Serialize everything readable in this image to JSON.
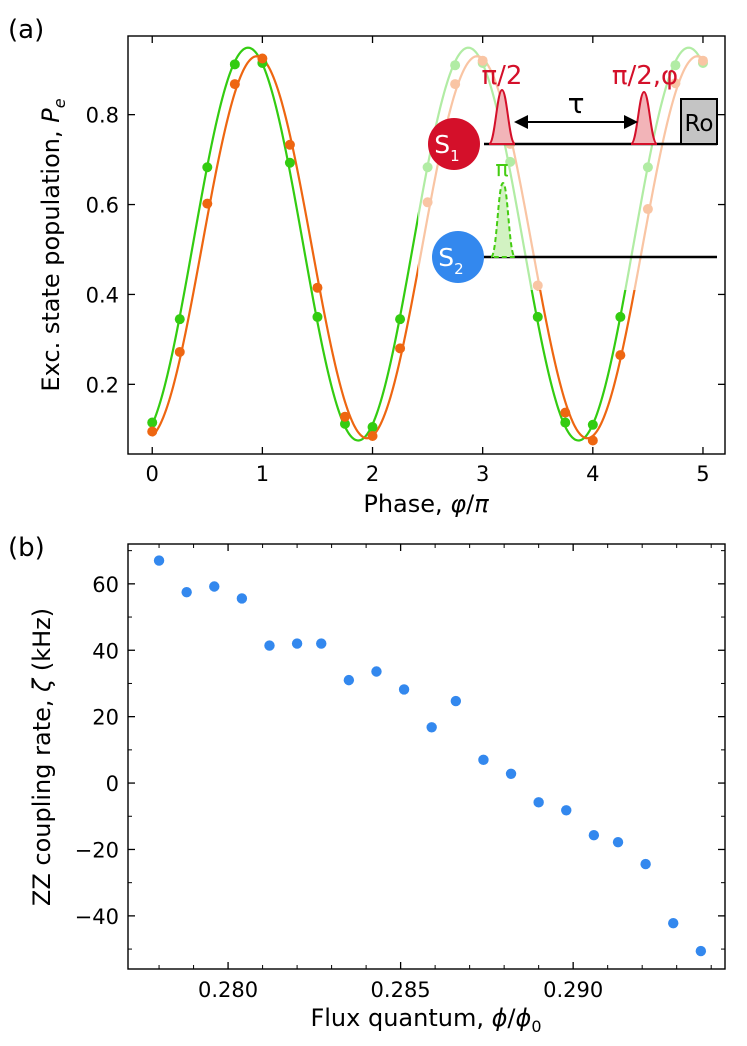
{
  "chart_data": [
    {
      "panel_label": "(a)",
      "type": "scatter",
      "xlabel": "Phase, φ/π",
      "ylabel": "Exc. state population, Pe",
      "ylabel_main": "Exc. state population, ",
      "ylabel_symbol": "P",
      "ylabel_subscript": "e",
      "xlim": [
        -0.22,
        5.2
      ],
      "ylim": [
        0.045,
        0.975
      ],
      "xticks": [
        0,
        1,
        2,
        3,
        4,
        5
      ],
      "xtick_labels": [
        "0",
        "1",
        "2",
        "3",
        "4",
        "5"
      ],
      "yticks": [
        0.2,
        0.4,
        0.6,
        0.8
      ],
      "ytick_labels": [
        "0.2",
        "0.4",
        "0.6",
        "0.8"
      ],
      "series": [
        {
          "name": "green data",
          "color": "#33cc11",
          "x": [
            0,
            0.25,
            0.5,
            0.75,
            1,
            1.25,
            1.5,
            1.75,
            2,
            2.25,
            2.5,
            2.75,
            3,
            3.25,
            3.5,
            3.75,
            4,
            4.25,
            4.5,
            4.75,
            5
          ],
          "y": [
            0.115,
            0.345,
            0.683,
            0.912,
            0.915,
            0.693,
            0.35,
            0.112,
            0.105,
            0.345,
            0.683,
            0.91,
            0.915,
            0.695,
            0.35,
            0.115,
            0.11,
            0.35,
            0.683,
            0.91,
            0.915
          ],
          "fit": {
            "amplitude": 0.437,
            "offset": 0.512,
            "phase_shift": 0.87
          }
        },
        {
          "name": "orange data",
          "color": "#ee6611",
          "x": [
            0,
            0.25,
            0.5,
            0.75,
            1,
            1.25,
            1.5,
            1.75,
            2,
            2.25,
            2.5,
            2.75,
            3,
            3.25,
            3.5,
            3.75,
            4,
            4.25,
            4.5,
            4.75,
            5
          ],
          "y": [
            0.095,
            0.272,
            0.602,
            0.868,
            0.925,
            0.733,
            0.415,
            0.128,
            0.085,
            0.28,
            0.605,
            0.868,
            0.92,
            0.735,
            0.42,
            0.137,
            0.075,
            0.265,
            0.59,
            0.87,
            0.92
          ],
          "fit": {
            "amplitude": 0.425,
            "offset": 0.505,
            "phase_shift": 0.95
          }
        }
      ],
      "inset": {
        "qubit1_letter": "S",
        "qubit1_sub": "1",
        "qubit2_letter": "S",
        "qubit2_sub": "2",
        "qubit1_color": "#d4102a",
        "qubit2_color": "#3388ee",
        "pulse1_label": "π/2",
        "pulse2_label": "π/2,φ",
        "pi_label": "π",
        "tau_label": "τ",
        "readout_label": "Ro",
        "pulse_color": "#d4102a",
        "pi_color": "#44cc11"
      }
    },
    {
      "panel_label": "(b)",
      "type": "scatter",
      "xlabel": "Flux quantum, ϕ/ϕ0",
      "xlabel_main": "Flux quantum, ",
      "xlabel_sym1": "ϕ",
      "xlabel_sym2": "ϕ",
      "xlabel_sub": "0",
      "ylabel": "ZZ coupling rate, ζ (kHz)",
      "ylabel_main": "ZZ coupling rate, ",
      "ylabel_symbol": "ζ",
      "ylabel_unit": " (kHz)",
      "xlim": [
        0.2771,
        0.2944
      ],
      "ylim": [
        -56,
        72
      ],
      "xticks": [
        0.28,
        0.285,
        0.29
      ],
      "xtick_labels": [
        "0.280",
        "0.285",
        "0.290"
      ],
      "yticks": [
        -40,
        -20,
        0,
        20,
        40,
        60
      ],
      "ytick_labels": [
        "−40",
        "−20",
        "0",
        "20",
        "40",
        "60"
      ],
      "series": [
        {
          "name": "zeta",
          "color": "#3388ee",
          "x": [
            0.278,
            0.2788,
            0.2796,
            0.2804,
            0.2812,
            0.282,
            0.2827,
            0.2835,
            0.2843,
            0.2851,
            0.2859,
            0.2866,
            0.2874,
            0.2882,
            0.289,
            0.2898,
            0.2906,
            0.2913,
            0.2921,
            0.2929,
            0.2937
          ],
          "y": [
            67,
            57.5,
            59.2,
            55.6,
            41.4,
            42,
            42,
            31,
            33.6,
            28.2,
            16.8,
            24.7,
            7,
            2.8,
            -5.8,
            -8.2,
            -15.7,
            -17.8,
            -24.4,
            -42.2,
            -50.6
          ]
        }
      ]
    }
  ]
}
